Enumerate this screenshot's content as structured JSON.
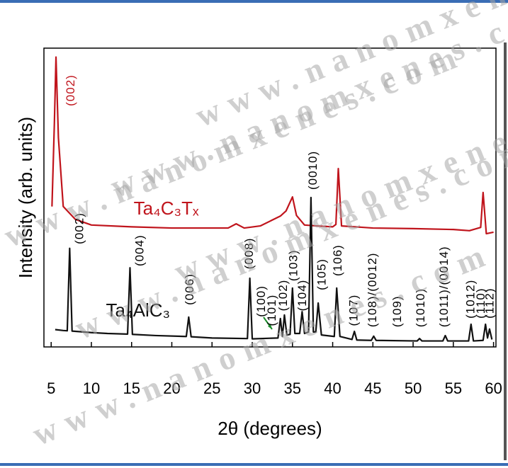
{
  "chart_data": {
    "type": "line",
    "xlabel": "2θ (degrees)",
    "ylabel": "Intensity (arb. units)",
    "watermark": "www.nanomxenes.com",
    "xlim": [
      4.1,
      60.3
    ],
    "xticks": [
      5,
      10,
      15,
      20,
      25,
      30,
      35,
      40,
      45,
      50,
      55,
      60
    ],
    "ylim": [
      0,
      100
    ],
    "series": [
      {
        "name": "Ta₄C₃Tₓ",
        "color": "#c0141c",
        "label_at": [
          19.3,
          46
        ],
        "x": [
          5.1,
          5.4,
          5.6,
          5.9,
          6.5,
          8,
          10,
          15,
          20,
          25,
          27,
          28,
          29,
          31,
          33.5,
          34.2,
          35,
          35.5,
          36.5,
          38,
          40,
          40.4,
          40.7,
          41.1,
          45,
          50,
          55,
          57,
          58.4,
          58.7,
          59.1,
          60
        ],
        "values": [
          47,
          75,
          97,
          70,
          47,
          42.7,
          40.8,
          40.2,
          39.8,
          39.8,
          39.8,
          41.2,
          39.8,
          40.5,
          43.8,
          45.5,
          50.2,
          44,
          40.8,
          40.5,
          40.2,
          41,
          59.7,
          40.5,
          39.8,
          39.6,
          39.3,
          38.9,
          40,
          51.7,
          37.9,
          38.4
        ]
      },
      {
        "name": "Ta₄AlC₃",
        "color": "#111111",
        "label_at": [
          15.8,
          11.8
        ],
        "x": [
          5.5,
          6.5,
          7.0,
          7.3,
          7.6,
          10,
          12,
          14.5,
          14.8,
          15.1,
          18,
          21.8,
          22.1,
          22.4,
          25,
          29.4,
          29.7,
          30,
          33.2,
          33.5,
          33.75,
          34.0,
          34.3,
          34.7,
          35.0,
          35.3,
          35.9,
          36.2,
          36.5,
          37.0,
          37.3,
          37.6,
          37.9,
          38.2,
          38.6,
          40.2,
          40.5,
          40.9,
          42.4,
          42.7,
          43,
          44.8,
          45.1,
          45.4,
          50.5,
          50.8,
          51.1,
          53.7,
          54,
          54.3,
          56.9,
          57.2,
          57.5,
          58.7,
          59,
          59.25,
          59.5,
          59.8
        ],
        "values": [
          5.8,
          5.5,
          5.4,
          33,
          5.3,
          4.8,
          4.5,
          4.3,
          26.5,
          4.2,
          3.8,
          3.5,
          10,
          3.4,
          3,
          2.8,
          23,
          2.7,
          3,
          9.5,
          3.5,
          10.7,
          4,
          4.2,
          19.7,
          4.5,
          4.5,
          11.8,
          4.5,
          5,
          50,
          5,
          5,
          14.7,
          4,
          3.5,
          19.7,
          3.5,
          2.5,
          5.2,
          2.3,
          2.2,
          3.6,
          2.2,
          2,
          2.8,
          2,
          2,
          3.8,
          2,
          2,
          7.6,
          2,
          2.2,
          7.6,
          3,
          6,
          2.5
        ]
      }
    ],
    "annotations": [
      {
        "text": "(002)",
        "x": 7.5,
        "y": 80.6,
        "color": "#c0141c"
      },
      {
        "text": "(002)",
        "x": 8.6,
        "y": 34.4
      },
      {
        "text": "(004)",
        "x": 16.1,
        "y": 27
      },
      {
        "text": "(006)",
        "x": 22.3,
        "y": 14
      },
      {
        "text": "(008)",
        "x": 29.7,
        "y": 26
      },
      {
        "text": "(100)",
        "x": 31.2,
        "y": 10
      },
      {
        "text": "(101)",
        "x": 32.5,
        "y": 7
      },
      {
        "text": "(102)",
        "x": 33.9,
        "y": 12
      },
      {
        "text": "(103)",
        "x": 35.2,
        "y": 22
      },
      {
        "text": "(104)",
        "x": 36.3,
        "y": 12
      },
      {
        "text": "(0010)",
        "x": 37.6,
        "y": 52.6
      },
      {
        "text": "(105)",
        "x": 38.7,
        "y": 19
      },
      {
        "text": "(106)",
        "x": 40.7,
        "y": 23.7
      },
      {
        "text": "(107)",
        "x": 42.7,
        "y": 7
      },
      {
        "text": "(108)/(0012)",
        "x": 45,
        "y": 6.6
      },
      {
        "text": "(109)",
        "x": 48.1,
        "y": 6.6
      },
      {
        "text": "(1010)",
        "x": 51,
        "y": 6.6
      },
      {
        "text": "(1011)/(0014)",
        "x": 53.9,
        "y": 6.6
      },
      {
        "text": "(1012)",
        "x": 57.2,
        "y": 9.5
      },
      {
        "text": "(110)",
        "x": 58.5,
        "y": 9.5
      },
      {
        "text": "(112)",
        "x": 59.6,
        "y": 9.5
      }
    ]
  }
}
